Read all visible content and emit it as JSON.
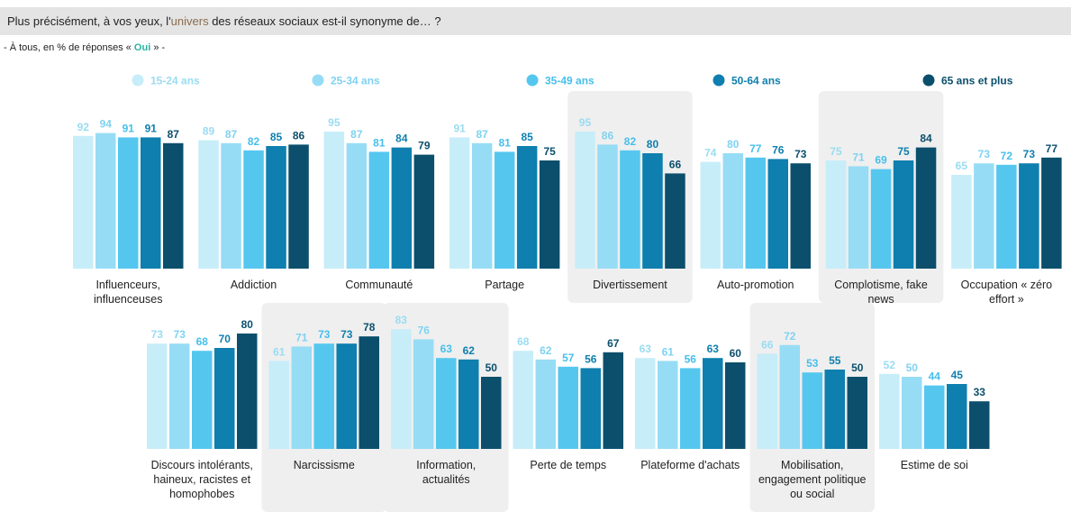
{
  "question": {
    "before": "Plus précisément, à vos yeux, l'",
    "highlight": "univers",
    "after": " des réseaux sociaux est-il synonyme de… ?"
  },
  "subtitle": {
    "before": "- À tous, en % de réponses « ",
    "highlight": "Oui",
    "after": " » -"
  },
  "colors": {
    "series": [
      "#c7edf9",
      "#97dcf5",
      "#55c7ef",
      "#0e7fae",
      "#0b4f6c"
    ],
    "labels": [
      "#9adcf2",
      "#7fd2f1",
      "#46bfec",
      "#0e7fae",
      "#0b4f6c"
    ],
    "highlight_bg": "#efefef"
  },
  "chart_data": {
    "type": "bar",
    "unit": "%",
    "ylim": [
      0,
      100
    ],
    "series_names": [
      "15-24 ans",
      "25-34 ans",
      "35-49 ans",
      "50-64 ans",
      "65 ans et plus"
    ],
    "rows": [
      {
        "categories": [
          {
            "name": "Influenceurs, influenceuses",
            "lines": [
              "Influenceurs,",
              "influenceuses"
            ],
            "values": [
              92,
              94,
              91,
              91,
              87
            ],
            "highlight": false
          },
          {
            "name": "Addiction",
            "lines": [
              "Addiction"
            ],
            "values": [
              89,
              87,
              82,
              85,
              86
            ],
            "highlight": false
          },
          {
            "name": "Communauté",
            "lines": [
              "Communauté"
            ],
            "values": [
              95,
              87,
              81,
              84,
              79
            ],
            "highlight": false
          },
          {
            "name": "Partage",
            "lines": [
              "Partage"
            ],
            "values": [
              91,
              87,
              81,
              85,
              75
            ],
            "highlight": false
          },
          {
            "name": "Divertissement",
            "lines": [
              "Divertissement"
            ],
            "values": [
              95,
              86,
              82,
              80,
              66
            ],
            "highlight": true
          },
          {
            "name": "Auto-promotion",
            "lines": [
              "Auto-promotion"
            ],
            "values": [
              74,
              80,
              77,
              76,
              73
            ],
            "highlight": false
          },
          {
            "name": "Complotisme, fake news",
            "lines": [
              "Complotisme, fake",
              "news"
            ],
            "values": [
              75,
              71,
              69,
              75,
              84
            ],
            "highlight": true
          },
          {
            "name": "Occupation « zéro effort »",
            "lines": [
              "Occupation « zéro",
              "effort »"
            ],
            "values": [
              65,
              73,
              72,
              73,
              77
            ],
            "highlight": false
          }
        ]
      },
      {
        "categories": [
          {
            "name": "Discours intolérants, haineux, racistes et homophobes",
            "lines": [
              "Discours intolérants,",
              "haineux, racistes et",
              "homophobes"
            ],
            "values": [
              73,
              73,
              68,
              70,
              80
            ],
            "highlight": false
          },
          {
            "name": "Narcissisme",
            "lines": [
              "Narcissisme"
            ],
            "values": [
              61,
              71,
              73,
              73,
              78
            ],
            "highlight": true
          },
          {
            "name": "Information, actualités",
            "lines": [
              "Information,",
              "actualités"
            ],
            "values": [
              83,
              76,
              63,
              62,
              50
            ],
            "highlight": true
          },
          {
            "name": "Perte de temps",
            "lines": [
              "Perte de temps"
            ],
            "values": [
              68,
              62,
              57,
              56,
              67
            ],
            "highlight": false
          },
          {
            "name": "Plateforme d'achats",
            "lines": [
              "Plateforme d'achats"
            ],
            "values": [
              63,
              61,
              56,
              63,
              60
            ],
            "highlight": false
          },
          {
            "name": "Mobilisation, engagement politique ou social",
            "lines": [
              "Mobilisation,",
              "engagement politique",
              "ou social"
            ],
            "values": [
              66,
              72,
              53,
              55,
              50
            ],
            "highlight": true
          },
          {
            "name": "Estime de soi",
            "lines": [
              "Estime de soi"
            ],
            "values": [
              52,
              50,
              44,
              45,
              33
            ],
            "highlight": false
          }
        ]
      }
    ]
  }
}
